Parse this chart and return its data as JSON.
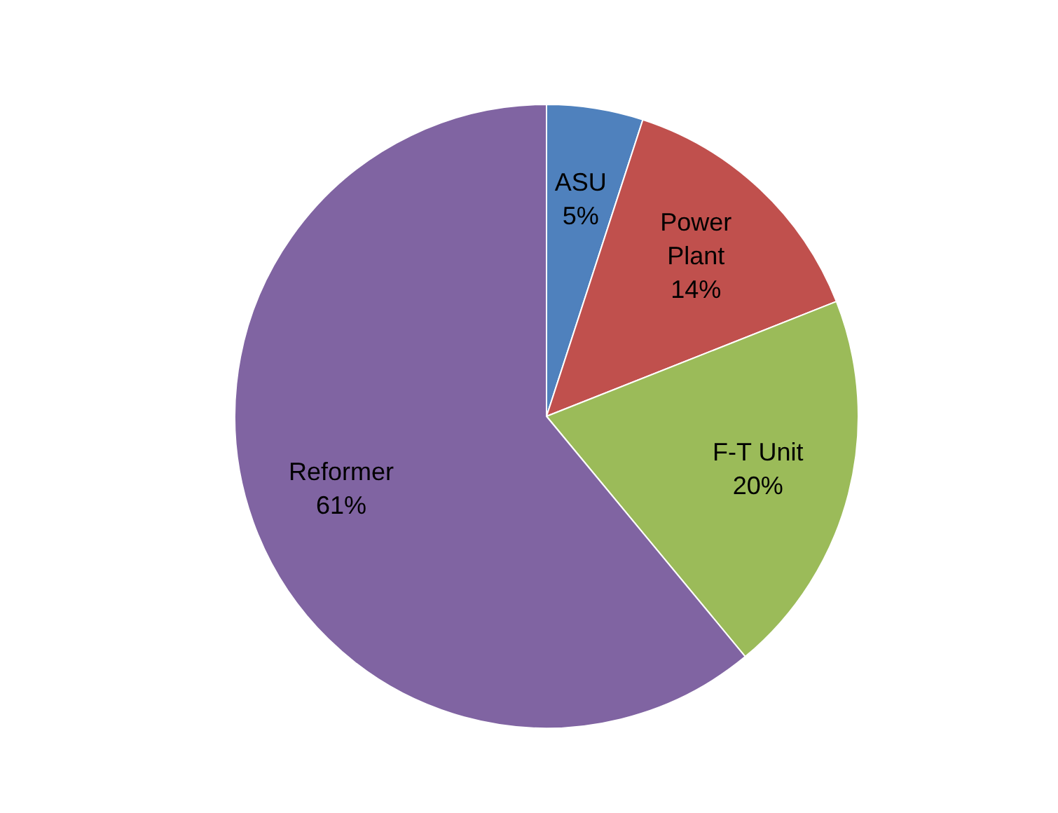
{
  "chart_data": {
    "type": "pie",
    "categories": [
      "ASU",
      "Power Plant",
      "F-T Unit",
      "Reformer"
    ],
    "values": [
      5,
      14,
      20,
      61
    ],
    "value_labels": [
      "5%",
      "14%",
      "20%",
      "61%"
    ],
    "colors": [
      "#4f81bd",
      "#c0504d",
      "#9bbb59",
      "#8064a2"
    ],
    "legend": false
  }
}
